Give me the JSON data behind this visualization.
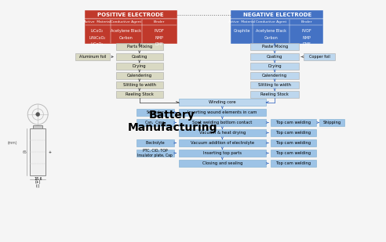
{
  "title": "Battery\nManufacturing",
  "bg_color": "#f5f5f5",
  "pos_electrode": {
    "title": "POSITIVE ELECTRODE",
    "color": "#c0392b",
    "cols": [
      "Active  Material",
      "Conductive Agent",
      "Binder"
    ],
    "rows": [
      [
        "LiCoO₂",
        "Acetylene Black",
        "PVDF"
      ],
      [
        "LiNiCoO₂",
        "Carbon",
        "NMP"
      ],
      [
        "LiCoO₂",
        "",
        "DMF"
      ]
    ]
  },
  "neg_electrode": {
    "title": "NEGATIVE ELECTRODE",
    "color": "#4472c4",
    "cols": [
      "Active  Material",
      "Conductive Agent",
      "Binder"
    ],
    "rows": [
      [
        "Graphite",
        "Acetylene Black",
        "PVDF"
      ],
      [
        "",
        "Carbon",
        "NMP"
      ],
      [
        "",
        "",
        "DMF"
      ]
    ]
  },
  "pos_steps": [
    "Parts Mixing",
    "Coating",
    "Drying",
    "Calendering",
    "Slitting to width",
    "Reeling Stock"
  ],
  "neg_steps": [
    "Paste Mixing",
    "Coating",
    "Drying",
    "Calendering",
    "Slitting to width",
    "Reeling Stock"
  ],
  "assembly_steps": [
    "Winding core",
    "Inserting wound elements in cam",
    "Spot welding bottom contact",
    "Vacuum & heat drying",
    "Vacuum addition of electrolyte",
    "Inserting top parts",
    "Closing and sealing"
  ],
  "right_steps": [
    "Top cam welding",
    "Top cam welding",
    "Top cam welding",
    "Top cam welding",
    "Top cam welding"
  ],
  "left_inputs": [
    "Separator",
    "Can,  Case",
    "Electrolyte",
    "PTC, CIO, TOP\nInsulator plate, Cap"
  ],
  "foil_left": "Aluminum foil",
  "foil_right": "Copper foil",
  "shipping": "Shipping",
  "col_pos": "#d9d9c3",
  "col_neg": "#bdd7ee",
  "col_asm": "#9dc3e6",
  "col_asm_light": "#bdd7ee",
  "col_input": "#9dc3e6"
}
